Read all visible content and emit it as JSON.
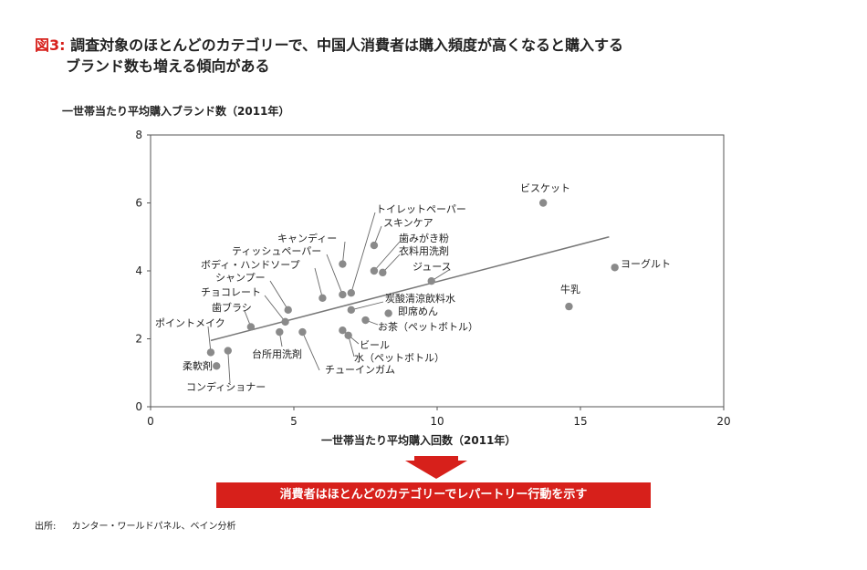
{
  "title": {
    "prefix": "図3:",
    "line1": "調査対象のほとんどのカテゴリーで、中国人消費者は購入頻度が高くなると購入する",
    "line2": "ブランド数も増える傾向がある"
  },
  "callout": "消費者はほとんどのカテゴリーでレパートリー行動を示す",
  "source": {
    "label": "出所:",
    "text": "カンター・ワールドパネル、ベイン分析"
  },
  "colors": {
    "accent": "#d7201b",
    "points": "#8a8a8a",
    "trendline": "#777777",
    "axis": "#555555"
  },
  "chart_data": {
    "type": "scatter",
    "xlabel": "一世帯当たり平均購入回数（2011年）",
    "ylabel": "一世帯当たり平均購入ブランド数（2011年）",
    "xlim": [
      0,
      20
    ],
    "ylim": [
      0,
      8
    ],
    "xticks": [
      0,
      5,
      10,
      15,
      20
    ],
    "yticks": [
      0,
      2,
      4,
      6,
      8
    ],
    "grid": false,
    "trendline": {
      "x": [
        2.1,
        16.0
      ],
      "y": [
        1.95,
        5.0
      ]
    },
    "points": [
      {
        "label": "ビスケット",
        "x": 13.7,
        "y": 6.0
      },
      {
        "label": "ヨーグルト",
        "x": 16.2,
        "y": 4.1
      },
      {
        "label": "牛乳",
        "x": 14.6,
        "y": 2.95
      },
      {
        "label": "トイレットペーパー",
        "x": 7.0,
        "y": 3.35
      },
      {
        "label": "スキンケア",
        "x": 7.8,
        "y": 4.75
      },
      {
        "label": "歯みがき粉",
        "x": 7.8,
        "y": 4.0
      },
      {
        "label": "衣料用洗剤",
        "x": 8.1,
        "y": 3.95
      },
      {
        "label": "ジュース",
        "x": 9.8,
        "y": 3.7
      },
      {
        "label": "キャンディー",
        "x": 6.7,
        "y": 4.2
      },
      {
        "label": "ティッシュペーパー",
        "x": 6.7,
        "y": 3.3
      },
      {
        "label": "ボディ・ハンドソープ",
        "x": 6.0,
        "y": 3.2
      },
      {
        "label": "シャンプー",
        "x": 4.8,
        "y": 2.85
      },
      {
        "label": "チョコレート",
        "x": 4.7,
        "y": 2.5
      },
      {
        "label": "歯ブラシ",
        "x": 3.5,
        "y": 2.35
      },
      {
        "label": "ポイントメイク",
        "x": 2.1,
        "y": 1.6
      },
      {
        "label": "柔軟剤",
        "x": 2.3,
        "y": 1.2
      },
      {
        "label": "コンディショナー",
        "x": 2.7,
        "y": 1.65
      },
      {
        "label": "台所用洗剤",
        "x": 4.5,
        "y": 2.2
      },
      {
        "label": "チューインガム",
        "x": 5.3,
        "y": 2.2
      },
      {
        "label": "炭酸清涼飲料水",
        "x": 7.0,
        "y": 2.85
      },
      {
        "label": "即席めん",
        "x": 8.3,
        "y": 2.75
      },
      {
        "label": "お茶（ペットボトル）",
        "x": 7.5,
        "y": 2.55
      },
      {
        "label": "ビール",
        "x": 6.7,
        "y": 2.25
      },
      {
        "label": "水（ペットボトル）",
        "x": 6.9,
        "y": 2.1
      }
    ]
  }
}
